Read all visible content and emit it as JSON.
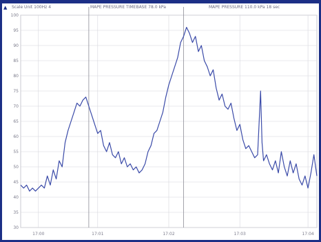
{
  "header": {
    "left_text": "Scale Unit 100Hz 4",
    "middle_text": "MAPE PRESSURE TIMEBASE 78.0 kPa",
    "right_text": "MAPE PRESSURE 110.0 kPa 18 sec"
  },
  "colors": {
    "series": "#3a4aa8",
    "grid": "#d6d6dc",
    "frame": "#1c2f86",
    "cursor": "#8c8c96"
  },
  "chart_data": {
    "type": "line",
    "title": "",
    "xlabel": "",
    "ylabel": "",
    "ylim": [
      30,
      100
    ],
    "xlim": [
      0,
      1
    ],
    "y_ticks": [
      100,
      95,
      90,
      85,
      80,
      75,
      70,
      65,
      60,
      55,
      50,
      45,
      40,
      35,
      30
    ],
    "x_ticks": [
      {
        "x": 0.06,
        "label": "17:00"
      },
      {
        "x": 0.26,
        "label": "17:01"
      },
      {
        "x": 0.5,
        "label": "17:02"
      },
      {
        "x": 0.74,
        "label": "17:03"
      },
      {
        "x": 0.97,
        "label": "17:04"
      }
    ],
    "cursors": [
      0.23,
      0.55
    ],
    "grid": true,
    "series": [
      {
        "values": [
          [
            0.0,
            44
          ],
          [
            0.01,
            43
          ],
          [
            0.02,
            44
          ],
          [
            0.03,
            42
          ],
          [
            0.04,
            43
          ],
          [
            0.05,
            42
          ],
          [
            0.06,
            43
          ],
          [
            0.07,
            44
          ],
          [
            0.08,
            43
          ],
          [
            0.09,
            47
          ],
          [
            0.1,
            44
          ],
          [
            0.11,
            49
          ],
          [
            0.12,
            46
          ],
          [
            0.13,
            52
          ],
          [
            0.14,
            50
          ],
          [
            0.15,
            58
          ],
          [
            0.16,
            62
          ],
          [
            0.17,
            65
          ],
          [
            0.18,
            68
          ],
          [
            0.19,
            71
          ],
          [
            0.2,
            70
          ],
          [
            0.21,
            72
          ],
          [
            0.22,
            73
          ],
          [
            0.23,
            70
          ],
          [
            0.24,
            67
          ],
          [
            0.25,
            64
          ],
          [
            0.26,
            61
          ],
          [
            0.27,
            62
          ],
          [
            0.28,
            57
          ],
          [
            0.29,
            55
          ],
          [
            0.3,
            58
          ],
          [
            0.31,
            54
          ],
          [
            0.32,
            53
          ],
          [
            0.33,
            55
          ],
          [
            0.34,
            51
          ],
          [
            0.35,
            53
          ],
          [
            0.36,
            50
          ],
          [
            0.37,
            51
          ],
          [
            0.38,
            49
          ],
          [
            0.39,
            50
          ],
          [
            0.4,
            48
          ],
          [
            0.41,
            49
          ],
          [
            0.42,
            51
          ],
          [
            0.43,
            55
          ],
          [
            0.44,
            57
          ],
          [
            0.45,
            61
          ],
          [
            0.46,
            62
          ],
          [
            0.47,
            65
          ],
          [
            0.48,
            68
          ],
          [
            0.49,
            73
          ],
          [
            0.5,
            77
          ],
          [
            0.51,
            80
          ],
          [
            0.52,
            83
          ],
          [
            0.53,
            86
          ],
          [
            0.54,
            91
          ],
          [
            0.55,
            93
          ],
          [
            0.56,
            96
          ],
          [
            0.57,
            94
          ],
          [
            0.58,
            91
          ],
          [
            0.59,
            93
          ],
          [
            0.6,
            88
          ],
          [
            0.61,
            90
          ],
          [
            0.62,
            85
          ],
          [
            0.63,
            83
          ],
          [
            0.64,
            80
          ],
          [
            0.65,
            82
          ],
          [
            0.66,
            76
          ],
          [
            0.67,
            72
          ],
          [
            0.68,
            74
          ],
          [
            0.69,
            70
          ],
          [
            0.7,
            69
          ],
          [
            0.71,
            71
          ],
          [
            0.72,
            66
          ],
          [
            0.73,
            62
          ],
          [
            0.74,
            64
          ],
          [
            0.75,
            59
          ],
          [
            0.76,
            56
          ],
          [
            0.77,
            57
          ],
          [
            0.78,
            55
          ],
          [
            0.79,
            53
          ],
          [
            0.8,
            54
          ],
          [
            0.81,
            75
          ],
          [
            0.815,
            58
          ],
          [
            0.82,
            52
          ],
          [
            0.83,
            54
          ],
          [
            0.84,
            51
          ],
          [
            0.85,
            49
          ],
          [
            0.86,
            52
          ],
          [
            0.87,
            48
          ],
          [
            0.88,
            55
          ],
          [
            0.89,
            50
          ],
          [
            0.9,
            47
          ],
          [
            0.91,
            52
          ],
          [
            0.92,
            48
          ],
          [
            0.93,
            51
          ],
          [
            0.94,
            46
          ],
          [
            0.95,
            44
          ],
          [
            0.96,
            47
          ],
          [
            0.97,
            43
          ],
          [
            0.98,
            48
          ],
          [
            0.99,
            54
          ],
          [
            1.0,
            47
          ]
        ]
      }
    ]
  }
}
